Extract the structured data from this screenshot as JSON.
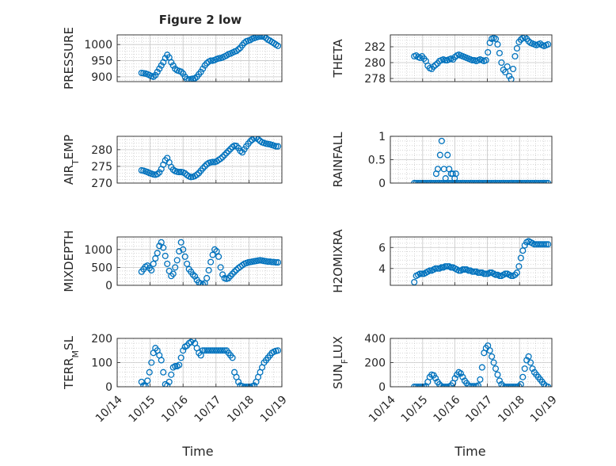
{
  "figure": {
    "title": "Figure 2 low",
    "colors": {
      "marker": "#0072BD",
      "axes": "#262626",
      "grid": "#bdbdbd",
      "background": "#ffffff"
    }
  },
  "chart_data": [
    {
      "type": "scatter",
      "ylabel": "PRESSURE",
      "title": "Figure 2 low",
      "xlim": [
        "10/14",
        "10/19"
      ],
      "ylim": [
        885,
        1030
      ],
      "yticks": [
        900,
        950,
        1000
      ],
      "xticklabels": [],
      "grid": "on",
      "x_days": [
        0.74,
        0.8,
        0.86,
        0.92,
        0.98,
        1.04,
        1.1,
        1.16,
        1.22,
        1.28,
        1.34,
        1.4,
        1.46,
        1.52,
        1.58,
        1.64,
        1.7,
        1.76,
        1.82,
        1.88,
        1.94,
        2,
        2.06,
        2.12,
        2.18,
        2.24,
        2.3,
        2.36,
        2.42,
        2.48,
        2.54,
        2.6,
        2.66,
        2.72,
        2.78,
        2.84,
        2.9,
        2.96,
        3.02,
        3.08,
        3.14,
        3.2,
        3.26,
        3.32,
        3.38,
        3.44,
        3.5,
        3.56,
        3.62,
        3.68,
        3.74,
        3.8,
        3.86,
        3.92,
        3.98,
        4.04,
        4.1,
        4.16,
        4.22,
        4.28,
        4.34,
        4.4,
        4.46,
        4.52,
        4.58,
        4.64,
        4.7,
        4.76,
        4.82,
        4.88
      ],
      "y": [
        912,
        911,
        910,
        908,
        905,
        902,
        900,
        905,
        915,
        925,
        935,
        945,
        958,
        968,
        960,
        945,
        935,
        925,
        920,
        918,
        916,
        910,
        900,
        893,
        892,
        893,
        894,
        895,
        900,
        908,
        915,
        925,
        935,
        942,
        947,
        950,
        950,
        952,
        955,
        957,
        958,
        960,
        963,
        966,
        970,
        972,
        975,
        978,
        980,
        985,
        990,
        998,
        1005,
        1010,
        1012,
        1014,
        1018,
        1020,
        1022,
        1024,
        1025,
        1025,
        1024,
        1020,
        1015,
        1012,
        1008,
        1004,
        1000,
        996
      ]
    },
    {
      "type": "scatter",
      "ylabel": "THETA",
      "xlim": [
        "10/14",
        "10/19"
      ],
      "ylim": [
        277.6,
        283.5
      ],
      "yticks": [
        278,
        280,
        282
      ],
      "xticklabels": [],
      "grid": "on",
      "x_days": [
        0.74,
        0.8,
        0.86,
        0.92,
        0.98,
        1.04,
        1.1,
        1.16,
        1.22,
        1.28,
        1.34,
        1.4,
        1.46,
        1.52,
        1.58,
        1.64,
        1.7,
        1.76,
        1.82,
        1.88,
        1.94,
        2,
        2.06,
        2.12,
        2.18,
        2.24,
        2.3,
        2.36,
        2.42,
        2.48,
        2.54,
        2.6,
        2.66,
        2.72,
        2.78,
        2.84,
        2.9,
        2.96,
        3.02,
        3.08,
        3.14,
        3.2,
        3.26,
        3.32,
        3.38,
        3.44,
        3.5,
        3.56,
        3.62,
        3.68,
        3.74,
        3.8,
        3.86,
        3.92,
        3.98,
        4.04,
        4.1,
        4.16,
        4.22,
        4.28,
        4.34,
        4.4,
        4.46,
        4.52,
        4.58,
        4.64,
        4.7,
        4.76,
        4.82,
        4.88
      ],
      "y": [
        280.8,
        280.9,
        280.7,
        280.6,
        280.8,
        280.5,
        280.2,
        279.6,
        279.3,
        279.2,
        279.5,
        279.7,
        279.9,
        280.2,
        280.3,
        280.4,
        280.3,
        280.3,
        280.4,
        280.5,
        280.4,
        280.7,
        280.9,
        281,
        280.9,
        280.8,
        280.7,
        280.6,
        280.5,
        280.4,
        280.3,
        280.3,
        280.2,
        280.3,
        280.4,
        280.3,
        280.2,
        280.3,
        281.3,
        282.5,
        283,
        283.1,
        283,
        282.3,
        281.2,
        280,
        279.1,
        278.8,
        279.5,
        278.3,
        277.9,
        279.2,
        280.8,
        281.8,
        282.6,
        282.9,
        283.1,
        283.2,
        283,
        282.7,
        282.5,
        282.4,
        282.3,
        282.2,
        282.3,
        282.4,
        282.2,
        282.1,
        282.2,
        282.3
      ]
    },
    {
      "type": "scatter",
      "ylabel": "AIR_TEMP",
      "xlim": [
        "10/14",
        "10/19"
      ],
      "ylim": [
        270,
        284
      ],
      "yticks": [
        270,
        275,
        280
      ],
      "xticklabels": [],
      "grid": "on",
      "x_days": [
        0.74,
        0.8,
        0.86,
        0.92,
        0.98,
        1.04,
        1.1,
        1.16,
        1.22,
        1.28,
        1.34,
        1.4,
        1.46,
        1.52,
        1.58,
        1.64,
        1.7,
        1.76,
        1.82,
        1.88,
        1.94,
        2,
        2.06,
        2.12,
        2.18,
        2.24,
        2.3,
        2.36,
        2.42,
        2.48,
        2.54,
        2.6,
        2.66,
        2.72,
        2.78,
        2.84,
        2.9,
        2.96,
        3.02,
        3.08,
        3.14,
        3.2,
        3.26,
        3.32,
        3.38,
        3.44,
        3.5,
        3.56,
        3.62,
        3.68,
        3.74,
        3.8,
        3.86,
        3.92,
        3.98,
        4.04,
        4.1,
        4.16,
        4.22,
        4.28,
        4.34,
        4.4,
        4.46,
        4.52,
        4.58,
        4.64,
        4.7,
        4.76,
        4.82,
        4.88
      ],
      "y": [
        273.8,
        273.7,
        273.5,
        273.3,
        273,
        272.8,
        272.6,
        272.5,
        272.7,
        273.2,
        274.2,
        275.5,
        276.8,
        277.5,
        276.2,
        274.8,
        274,
        273.6,
        273.4,
        273.3,
        273.3,
        273.2,
        272.9,
        272.4,
        272,
        271.8,
        271.9,
        272.1,
        272.5,
        273,
        273.7,
        274.4,
        275,
        275.6,
        276,
        276.2,
        276.3,
        276.3,
        276.5,
        276.9,
        277.3,
        277.8,
        278.4,
        279,
        279.6,
        280.2,
        280.8,
        281.2,
        281.1,
        280.5,
        279.6,
        279.2,
        280.1,
        281,
        281.8,
        282.5,
        283,
        283.4,
        283.5,
        283.1,
        282.6,
        282.2,
        282,
        281.8,
        281.7,
        281.6,
        281.4,
        281.2,
        281,
        281
      ]
    },
    {
      "type": "scatter",
      "ylabel": "RAINFALL",
      "xlim": [
        "10/14",
        "10/19"
      ],
      "ylim": [
        0,
        1
      ],
      "yticks": [
        0,
        0.5,
        1
      ],
      "xticklabels": [],
      "grid": "on",
      "x_days": [
        0.74,
        0.8,
        0.86,
        0.92,
        0.98,
        1.04,
        1.1,
        1.16,
        1.22,
        1.28,
        1.34,
        1.4,
        1.46,
        1.52,
        1.58,
        1.64,
        1.7,
        1.76,
        1.82,
        1.88,
        1.94,
        2,
        2.06,
        2.12,
        2.18,
        2.24,
        2.3,
        2.36,
        2.42,
        2.48,
        2.54,
        2.6,
        2.66,
        2.72,
        2.78,
        2.84,
        2.9,
        2.96,
        3.02,
        3.08,
        3.14,
        3.2,
        3.26,
        3.32,
        3.38,
        3.44,
        3.5,
        3.56,
        3.62,
        3.68,
        3.74,
        3.8,
        3.86,
        3.92,
        3.98,
        4.04,
        4.1,
        4.16,
        4.22,
        4.28,
        4.34,
        4.4,
        4.46,
        4.52,
        4.58,
        4.64,
        4.7,
        4.76,
        4.82,
        4.88,
        1.42,
        1.47,
        1.54,
        1.59,
        1.66,
        1.71,
        1.77,
        1.82,
        1.88,
        1.93,
        1.99,
        2.03
      ],
      "y": [
        0,
        0,
        0,
        0,
        0,
        0,
        0,
        0,
        0,
        0,
        0,
        0,
        0,
        0,
        0,
        0,
        0,
        0,
        0,
        0,
        0,
        0,
        0,
        0,
        0,
        0,
        0,
        0,
        0,
        0,
        0,
        0,
        0,
        0,
        0,
        0,
        0,
        0,
        0,
        0,
        0,
        0,
        0,
        0,
        0,
        0,
        0,
        0,
        0,
        0,
        0,
        0,
        0,
        0,
        0,
        0,
        0,
        0,
        0,
        0,
        0,
        0,
        0,
        0,
        0,
        0,
        0,
        0,
        0,
        0,
        0.2,
        0.3,
        0.6,
        0.9,
        0.3,
        0.1,
        0.6,
        0.3,
        0.2,
        0.2,
        0.1,
        0.2
      ]
    },
    {
      "type": "scatter",
      "ylabel": "MIXDEPTH",
      "xlim": [
        "10/14",
        "10/19"
      ],
      "ylim": [
        0,
        1350
      ],
      "yticks": [
        0,
        500,
        1000
      ],
      "xticklabels": [],
      "grid": "on",
      "x_days": [
        0.74,
        0.8,
        0.86,
        0.92,
        0.98,
        1.04,
        1.1,
        1.16,
        1.22,
        1.28,
        1.34,
        1.4,
        1.46,
        1.52,
        1.58,
        1.64,
        1.7,
        1.76,
        1.82,
        1.88,
        1.94,
        2,
        2.06,
        2.12,
        2.18,
        2.24,
        2.3,
        2.36,
        2.42,
        2.48,
        2.54,
        2.6,
        2.66,
        2.72,
        2.78,
        2.84,
        2.9,
        2.96,
        3.02,
        3.08,
        3.14,
        3.2,
        3.26,
        3.32,
        3.38,
        3.44,
        3.5,
        3.56,
        3.62,
        3.68,
        3.74,
        3.8,
        3.86,
        3.92,
        3.98,
        4.04,
        4.1,
        4.16,
        4.22,
        4.28,
        4.34,
        4.4,
        4.46,
        4.52,
        4.58,
        4.64,
        4.7,
        4.76,
        4.82,
        4.88
      ],
      "y": [
        380,
        450,
        520,
        550,
        480,
        420,
        600,
        750,
        900,
        1100,
        1200,
        1050,
        820,
        600,
        400,
        260,
        320,
        500,
        700,
        950,
        1200,
        1000,
        800,
        600,
        450,
        380,
        300,
        250,
        150,
        80,
        50,
        30,
        60,
        200,
        420,
        650,
        850,
        1000,
        950,
        800,
        500,
        300,
        200,
        180,
        200,
        260,
        320,
        380,
        430,
        480,
        520,
        560,
        600,
        620,
        640,
        650,
        660,
        670,
        680,
        690,
        700,
        690,
        680,
        670,
        660,
        660,
        650,
        650,
        640,
        640
      ]
    },
    {
      "type": "scatter",
      "ylabel": "H2OMIXRA",
      "xlim": [
        "10/14",
        "10/19"
      ],
      "ylim": [
        2.4,
        7
      ],
      "yticks": [
        4,
        6
      ],
      "xticklabels": [],
      "grid": "on",
      "x_days": [
        0.74,
        0.8,
        0.86,
        0.92,
        0.98,
        1.04,
        1.1,
        1.16,
        1.22,
        1.28,
        1.34,
        1.4,
        1.46,
        1.52,
        1.58,
        1.64,
        1.7,
        1.76,
        1.82,
        1.88,
        1.94,
        2,
        2.06,
        2.12,
        2.18,
        2.24,
        2.3,
        2.36,
        2.42,
        2.48,
        2.54,
        2.6,
        2.66,
        2.72,
        2.78,
        2.84,
        2.9,
        2.96,
        3.02,
        3.08,
        3.14,
        3.2,
        3.26,
        3.32,
        3.38,
        3.44,
        3.5,
        3.56,
        3.62,
        3.68,
        3.74,
        3.8,
        3.86,
        3.92,
        3.98,
        4.04,
        4.1,
        4.16,
        4.22,
        4.28,
        4.34,
        4.4,
        4.46,
        4.52,
        4.58,
        4.64,
        4.7,
        4.76,
        4.82,
        4.88
      ],
      "y": [
        2.7,
        3.3,
        3.4,
        3.5,
        3.5,
        3.5,
        3.6,
        3.7,
        3.8,
        3.8,
        3.9,
        4,
        4,
        4,
        4.1,
        4.1,
        4.2,
        4.2,
        4.2,
        4.1,
        4.1,
        4,
        3.9,
        3.8,
        3.8,
        3.9,
        3.9,
        3.9,
        3.8,
        3.8,
        3.7,
        3.7,
        3.7,
        3.6,
        3.6,
        3.6,
        3.5,
        3.5,
        3.5,
        3.6,
        3.6,
        3.5,
        3.4,
        3.4,
        3.3,
        3.3,
        3.4,
        3.5,
        3.5,
        3.4,
        3.3,
        3.3,
        3.4,
        3.6,
        4.2,
        5,
        5.7,
        6.2,
        6.5,
        6.6,
        6.5,
        6.4,
        6.3,
        6.3,
        6.3,
        6.3,
        6.3,
        6.3,
        6.3,
        6.3
      ]
    },
    {
      "type": "scatter",
      "ylabel": "TERR_MSL",
      "xlim": [
        "10/14",
        "10/19"
      ],
      "ylim": [
        0,
        200
      ],
      "yticks": [
        0,
        100,
        200
      ],
      "xticklabels": [
        "10/14",
        "10/15",
        "10/16",
        "10/17",
        "10/18",
        "10/19"
      ],
      "xlabel": "Time",
      "grid": "on",
      "x_days": [
        0.74,
        0.8,
        0.86,
        0.92,
        0.98,
        1.04,
        1.1,
        1.16,
        1.22,
        1.28,
        1.34,
        1.4,
        1.46,
        1.52,
        1.58,
        1.64,
        1.7,
        1.76,
        1.82,
        1.88,
        1.94,
        2,
        2.06,
        2.12,
        2.18,
        2.24,
        2.3,
        2.36,
        2.42,
        2.48,
        2.54,
        2.6,
        2.66,
        2.72,
        2.78,
        2.84,
        2.9,
        2.96,
        3.02,
        3.08,
        3.14,
        3.2,
        3.26,
        3.32,
        3.38,
        3.44,
        3.5,
        3.56,
        3.62,
        3.68,
        3.74,
        3.8,
        3.86,
        3.92,
        3.98,
        4.04,
        4.1,
        4.16,
        4.22,
        4.28,
        4.34,
        4.4,
        4.46,
        4.52,
        4.58,
        4.64,
        4.7,
        4.76,
        4.82,
        4.88
      ],
      "y": [
        20,
        5,
        2,
        25,
        60,
        100,
        140,
        160,
        150,
        130,
        110,
        60,
        10,
        5,
        20,
        50,
        80,
        85,
        85,
        90,
        120,
        150,
        165,
        170,
        180,
        185,
        195,
        180,
        160,
        140,
        130,
        150,
        150,
        150,
        150,
        150,
        150,
        150,
        150,
        150,
        150,
        150,
        150,
        150,
        140,
        130,
        120,
        60,
        40,
        20,
        5,
        2,
        0,
        0,
        0,
        0,
        2,
        5,
        20,
        40,
        60,
        80,
        100,
        110,
        120,
        130,
        140,
        145,
        148,
        150
      ]
    },
    {
      "type": "scatter",
      "ylabel": "SUN_FLUX",
      "xlim": [
        "10/14",
        "10/19"
      ],
      "ylim": [
        0,
        400
      ],
      "yticks": [
        0,
        200,
        400
      ],
      "xticklabels": [
        "10/14",
        "10/15",
        "10/16",
        "10/17",
        "10/18",
        "10/19"
      ],
      "xlabel": "Time",
      "grid": "on",
      "x_days": [
        0.74,
        0.8,
        0.86,
        0.92,
        0.98,
        1.04,
        1.1,
        1.16,
        1.22,
        1.28,
        1.34,
        1.4,
        1.46,
        1.52,
        1.58,
        1.64,
        1.7,
        1.76,
        1.82,
        1.88,
        1.94,
        2,
        2.06,
        2.12,
        2.18,
        2.24,
        2.3,
        2.36,
        2.42,
        2.48,
        2.54,
        2.6,
        2.66,
        2.72,
        2.78,
        2.84,
        2.9,
        2.96,
        3.02,
        3.08,
        3.14,
        3.2,
        3.26,
        3.32,
        3.38,
        3.44,
        3.5,
        3.56,
        3.62,
        3.68,
        3.74,
        3.8,
        3.86,
        3.92,
        3.98,
        4.04,
        4.1,
        4.16,
        4.22,
        4.28,
        4.34,
        4.4,
        4.46,
        4.52,
        4.58,
        4.64,
        4.7,
        4.76,
        4.82,
        4.88
      ],
      "y": [
        0,
        0,
        0,
        0,
        0,
        0,
        5,
        40,
        80,
        100,
        95,
        70,
        40,
        20,
        5,
        0,
        0,
        0,
        2,
        10,
        30,
        70,
        100,
        120,
        110,
        80,
        50,
        30,
        10,
        5,
        5,
        5,
        5,
        10,
        60,
        160,
        280,
        320,
        340,
        300,
        250,
        200,
        150,
        100,
        50,
        20,
        5,
        0,
        0,
        0,
        0,
        0,
        0,
        0,
        5,
        20,
        80,
        150,
        220,
        250,
        200,
        150,
        120,
        100,
        80,
        60,
        40,
        20,
        5,
        0
      ]
    }
  ]
}
